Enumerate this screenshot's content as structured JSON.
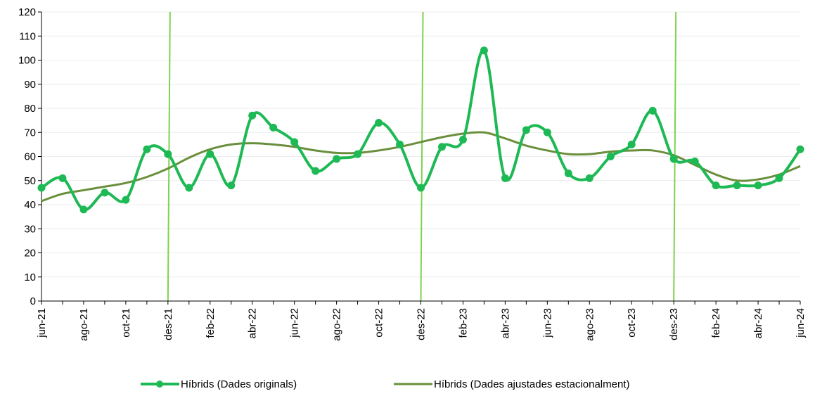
{
  "chart_data": {
    "type": "line",
    "title": "",
    "xlabel": "",
    "ylabel": "",
    "ylim": [
      0,
      120
    ],
    "yticks": [
      0,
      10,
      20,
      30,
      40,
      50,
      60,
      70,
      80,
      90,
      100,
      110,
      120
    ],
    "x": [
      "jun-21",
      "jul-21",
      "ago-21",
      "set-21",
      "oct-21",
      "nov-21",
      "des-21",
      "gen-22",
      "feb-22",
      "mar-22",
      "abr-22",
      "mai-22",
      "jun-22",
      "jul-22",
      "ago-22",
      "set-22",
      "oct-22",
      "nov-22",
      "des-22",
      "gen-23",
      "feb-23",
      "mar-23",
      "abr-23",
      "mai-23",
      "jun-23",
      "jul-23",
      "ago-23",
      "set-23",
      "oct-23",
      "nov-23",
      "des-23",
      "gen-24",
      "feb-24",
      "mar-24",
      "abr-24",
      "mai-24",
      "jun-24"
    ],
    "x_tick_labels": [
      "jun-21",
      "ago-21",
      "oct-21",
      "des-21",
      "feb-22",
      "abr-22",
      "jun-22",
      "ago-22",
      "oct-22",
      "des-22",
      "feb-23",
      "abr-23",
      "jun-23",
      "ago-23",
      "oct-23",
      "des-23",
      "feb-24",
      "abr-24",
      "jun-24"
    ],
    "vertical_markers": [
      "des-21",
      "des-22",
      "des-23"
    ],
    "grid": true,
    "legend_position": "bottom",
    "series": [
      {
        "name": "Híbrids (Dades originals)",
        "color": "#1db954",
        "markers": true,
        "values": [
          47,
          51,
          38,
          45,
          42,
          63,
          61,
          47,
          61,
          48,
          77,
          72,
          66,
          54,
          59,
          61,
          74,
          65,
          47,
          64,
          67,
          104,
          51,
          71,
          70,
          53,
          51,
          60,
          65,
          79,
          59,
          58,
          48,
          48,
          48,
          51,
          63
        ]
      },
      {
        "name": "Híbrids (Dades ajustades estacionalment)",
        "color": "#6a8f3c",
        "markers": false,
        "values": [
          41.5,
          44.5,
          46,
          47.5,
          49,
          51.5,
          55,
          59.5,
          63,
          65,
          65.5,
          65,
          64,
          62.5,
          61.5,
          61.5,
          62.5,
          64,
          66,
          68,
          69.5,
          70,
          67.5,
          64.5,
          62.5,
          61,
          61,
          62,
          62.5,
          62.5,
          60.5,
          56.5,
          52.5,
          50,
          50.5,
          52.5,
          56
        ]
      }
    ]
  }
}
